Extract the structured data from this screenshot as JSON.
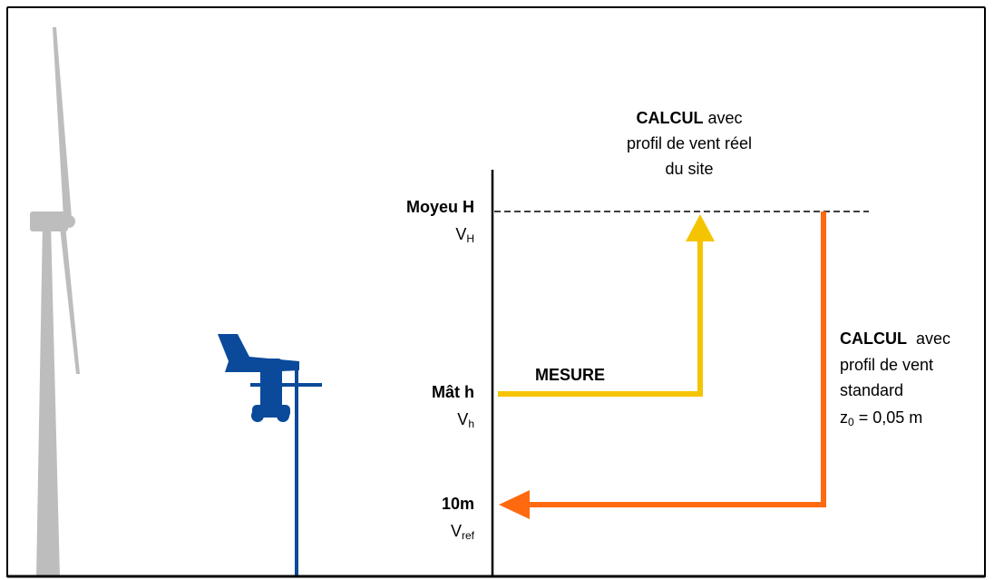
{
  "top_note": {
    "bold": "CALCUL",
    "rest": "avec",
    "lines": [
      "profil de vent réel",
      "du site"
    ]
  },
  "levels": [
    {
      "label": "Moyeu H",
      "symbol": "V",
      "subscript": "H"
    },
    {
      "label": "Mât h",
      "symbol": "V",
      "subscript": "h"
    },
    {
      "label": "10m",
      "symbol": "V",
      "subscript": "ref"
    }
  ],
  "measure": "MESURE",
  "right_note": {
    "bold": "CALCUL",
    "rest": "avec",
    "lines": [
      "profil de vent",
      "standard"
    ],
    "formula": {
      "symbol": "z",
      "subscript": "0",
      "rest": "= 0,05 m"
    }
  }
}
